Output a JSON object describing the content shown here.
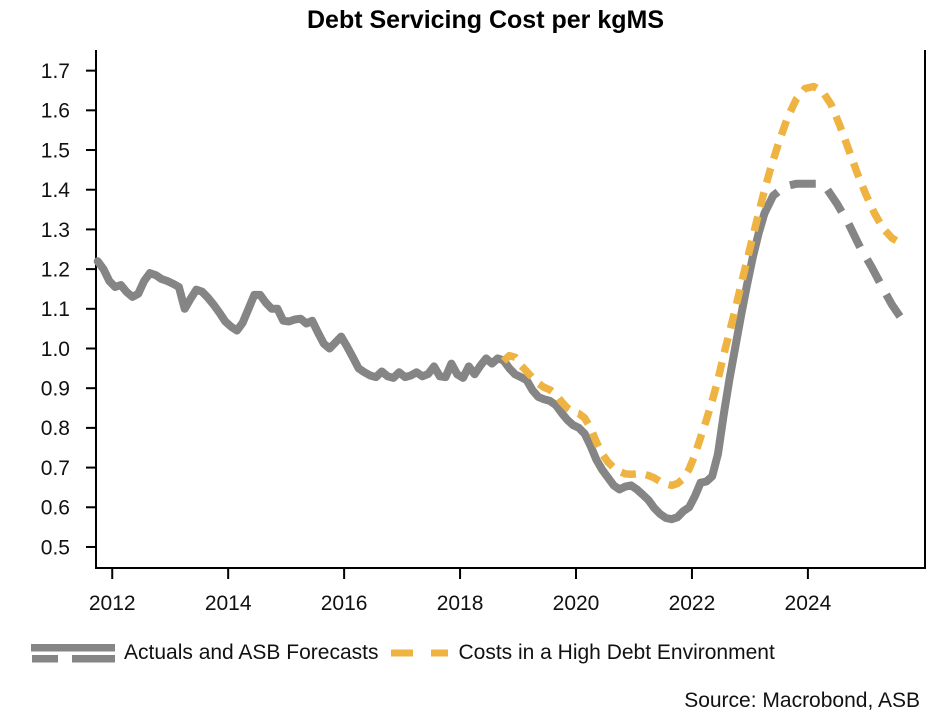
{
  "title": "Debt Servicing Cost per kgMS",
  "source": "Source: Macrobond, ASB",
  "colors": {
    "actuals": "#858585",
    "high_debt": "#EFB342",
    "axis": "#000000",
    "text": "#111111"
  },
  "legend": [
    {
      "label": "Actuals and ASB Forecasts",
      "color": "#858585",
      "style": "solid-plus-dashed"
    },
    {
      "label": "Costs in a High Debt Environment",
      "color": "#EFB342",
      "style": "dashed"
    }
  ],
  "chart_data": {
    "type": "line",
    "title": "Debt Servicing Cost per kgMS",
    "xlabel": "",
    "ylabel": "",
    "grid": false,
    "legend_position": "bottom",
    "xlim": [
      2011.72,
      2026.02
    ],
    "ylim": [
      0.447,
      1.752
    ],
    "x_ticks": [
      2012,
      2014,
      2016,
      2018,
      2020,
      2022,
      2024
    ],
    "x_tick_labels": [
      "2012",
      "2014",
      "2016",
      "2018",
      "2020",
      "2022",
      "2024"
    ],
    "y_ticks": [
      0.5,
      0.6,
      0.7,
      0.8,
      0.9,
      1.0,
      1.1,
      1.2,
      1.3,
      1.4,
      1.5,
      1.6,
      1.7
    ],
    "y_tick_labels": [
      "0.5",
      "0.6",
      "0.7",
      "0.8",
      "0.9",
      "1.0",
      "1.1",
      "1.2",
      "1.3",
      "1.4",
      "1.5",
      "1.6",
      "1.7"
    ],
    "series": [
      {
        "name": "actuals",
        "legend": "Actuals and ASB Forecasts",
        "color": "#858585",
        "line_style": "solid",
        "line_width": 8,
        "points": [
          [
            2011.75,
            1.22
          ],
          [
            2011.85,
            1.2
          ],
          [
            2011.95,
            1.17
          ],
          [
            2012.05,
            1.155
          ],
          [
            2012.15,
            1.16
          ],
          [
            2012.25,
            1.142
          ],
          [
            2012.35,
            1.13
          ],
          [
            2012.45,
            1.138
          ],
          [
            2012.55,
            1.17
          ],
          [
            2012.65,
            1.19
          ],
          [
            2012.75,
            1.185
          ],
          [
            2012.85,
            1.175
          ],
          [
            2012.95,
            1.17
          ],
          [
            2013.05,
            1.163
          ],
          [
            2013.15,
            1.155
          ],
          [
            2013.25,
            1.1
          ],
          [
            2013.35,
            1.125
          ],
          [
            2013.45,
            1.148
          ],
          [
            2013.55,
            1.143
          ],
          [
            2013.65,
            1.128
          ],
          [
            2013.75,
            1.11
          ],
          [
            2013.85,
            1.09
          ],
          [
            2013.95,
            1.068
          ],
          [
            2014.05,
            1.055
          ],
          [
            2014.15,
            1.045
          ],
          [
            2014.25,
            1.065
          ],
          [
            2014.35,
            1.1
          ],
          [
            2014.45,
            1.135
          ],
          [
            2014.55,
            1.135
          ],
          [
            2014.65,
            1.115
          ],
          [
            2014.75,
            1.1
          ],
          [
            2014.85,
            1.1
          ],
          [
            2014.95,
            1.07
          ],
          [
            2015.05,
            1.068
          ],
          [
            2015.15,
            1.073
          ],
          [
            2015.25,
            1.075
          ],
          [
            2015.35,
            1.063
          ],
          [
            2015.45,
            1.07
          ],
          [
            2015.55,
            1.04
          ],
          [
            2015.65,
            1.012
          ],
          [
            2015.75,
            1.0
          ],
          [
            2015.85,
            1.015
          ],
          [
            2015.95,
            1.03
          ],
          [
            2016.05,
            1.005
          ],
          [
            2016.15,
            0.978
          ],
          [
            2016.25,
            0.95
          ],
          [
            2016.35,
            0.94
          ],
          [
            2016.45,
            0.932
          ],
          [
            2016.55,
            0.928
          ],
          [
            2016.65,
            0.942
          ],
          [
            2016.75,
            0.93
          ],
          [
            2016.85,
            0.926
          ],
          [
            2016.95,
            0.94
          ],
          [
            2017.05,
            0.928
          ],
          [
            2017.15,
            0.932
          ],
          [
            2017.25,
            0.94
          ],
          [
            2017.35,
            0.93
          ],
          [
            2017.45,
            0.936
          ],
          [
            2017.55,
            0.955
          ],
          [
            2017.65,
            0.93
          ],
          [
            2017.75,
            0.928
          ],
          [
            2017.85,
            0.962
          ],
          [
            2017.95,
            0.935
          ],
          [
            2018.05,
            0.926
          ],
          [
            2018.15,
            0.955
          ],
          [
            2018.25,
            0.935
          ],
          [
            2018.35,
            0.957
          ],
          [
            2018.45,
            0.975
          ],
          [
            2018.55,
            0.962
          ],
          [
            2018.65,
            0.975
          ],
          [
            2018.75,
            0.97
          ],
          [
            2018.85,
            0.95
          ],
          [
            2018.95,
            0.935
          ],
          [
            2019.05,
            0.928
          ],
          [
            2019.15,
            0.92
          ],
          [
            2019.25,
            0.895
          ],
          [
            2019.35,
            0.878
          ],
          [
            2019.45,
            0.872
          ],
          [
            2019.55,
            0.868
          ],
          [
            2019.65,
            0.858
          ],
          [
            2019.75,
            0.838
          ],
          [
            2019.85,
            0.82
          ],
          [
            2019.95,
            0.807
          ],
          [
            2020.05,
            0.8
          ],
          [
            2020.15,
            0.785
          ],
          [
            2020.25,
            0.755
          ],
          [
            2020.35,
            0.72
          ],
          [
            2020.45,
            0.695
          ],
          [
            2020.55,
            0.675
          ],
          [
            2020.65,
            0.655
          ],
          [
            2020.75,
            0.645
          ],
          [
            2020.85,
            0.652
          ],
          [
            2020.95,
            0.655
          ],
          [
            2021.05,
            0.645
          ],
          [
            2021.15,
            0.632
          ],
          [
            2021.25,
            0.618
          ],
          [
            2021.35,
            0.598
          ],
          [
            2021.45,
            0.583
          ],
          [
            2021.55,
            0.573
          ],
          [
            2021.65,
            0.57
          ],
          [
            2021.75,
            0.575
          ],
          [
            2021.85,
            0.59
          ],
          [
            2021.95,
            0.6
          ],
          [
            2022.05,
            0.628
          ],
          [
            2022.15,
            0.662
          ],
          [
            2022.25,
            0.665
          ],
          [
            2022.35,
            0.678
          ],
          [
            2022.45,
            0.735
          ],
          [
            2022.55,
            0.835
          ],
          [
            2022.65,
            0.925
          ],
          [
            2022.75,
            1.005
          ],
          [
            2022.85,
            1.085
          ],
          [
            2022.95,
            1.16
          ],
          [
            2023.05,
            1.23
          ],
          [
            2023.15,
            1.29
          ],
          [
            2023.25,
            1.34
          ]
        ]
      },
      {
        "name": "asb-forecast",
        "legend": "Actuals and ASB Forecasts",
        "color": "#858585",
        "line_style": "dashed",
        "dash": "26 14",
        "line_width": 8,
        "points": [
          [
            2023.25,
            1.34
          ],
          [
            2023.4,
            1.385
          ],
          [
            2023.6,
            1.408
          ],
          [
            2023.8,
            1.415
          ],
          [
            2024.0,
            1.415
          ],
          [
            2024.15,
            1.415
          ],
          [
            2024.3,
            1.408
          ],
          [
            2024.5,
            1.365
          ],
          [
            2024.7,
            1.315
          ],
          [
            2024.9,
            1.255
          ],
          [
            2025.1,
            1.205
          ],
          [
            2025.3,
            1.15
          ],
          [
            2025.45,
            1.11
          ],
          [
            2025.6,
            1.078
          ]
        ]
      },
      {
        "name": "high-debt-costs",
        "legend": "Costs in a High Debt Environment",
        "color": "#EFB342",
        "line_style": "dashed",
        "dash": "15 10",
        "line_width": 7.5,
        "points": [
          [
            2018.75,
            0.968
          ],
          [
            2018.85,
            0.982
          ],
          [
            2018.95,
            0.978
          ],
          [
            2019.05,
            0.958
          ],
          [
            2019.15,
            0.942
          ],
          [
            2019.25,
            0.926
          ],
          [
            2019.35,
            0.912
          ],
          [
            2019.45,
            0.902
          ],
          [
            2019.55,
            0.896
          ],
          [
            2019.65,
            0.885
          ],
          [
            2019.75,
            0.866
          ],
          [
            2019.85,
            0.85
          ],
          [
            2019.95,
            0.84
          ],
          [
            2020.05,
            0.836
          ],
          [
            2020.15,
            0.825
          ],
          [
            2020.25,
            0.8
          ],
          [
            2020.35,
            0.765
          ],
          [
            2020.45,
            0.735
          ],
          [
            2020.55,
            0.714
          ],
          [
            2020.65,
            0.7
          ],
          [
            2020.75,
            0.69
          ],
          [
            2020.85,
            0.684
          ],
          [
            2020.95,
            0.683
          ],
          [
            2021.05,
            0.684
          ],
          [
            2021.15,
            0.684
          ],
          [
            2021.25,
            0.68
          ],
          [
            2021.35,
            0.674
          ],
          [
            2021.45,
            0.665
          ],
          [
            2021.55,
            0.659
          ],
          [
            2021.65,
            0.655
          ],
          [
            2021.75,
            0.66
          ],
          [
            2021.85,
            0.672
          ],
          [
            2021.95,
            0.696
          ],
          [
            2022.05,
            0.732
          ],
          [
            2022.15,
            0.776
          ],
          [
            2022.25,
            0.82
          ],
          [
            2022.35,
            0.868
          ],
          [
            2022.45,
            0.922
          ],
          [
            2022.55,
            0.985
          ],
          [
            2022.65,
            1.042
          ],
          [
            2022.75,
            1.1
          ],
          [
            2022.85,
            1.162
          ],
          [
            2022.95,
            1.222
          ],
          [
            2023.05,
            1.282
          ],
          [
            2023.15,
            1.34
          ],
          [
            2023.25,
            1.398
          ],
          [
            2023.35,
            1.45
          ],
          [
            2023.5,
            1.52
          ],
          [
            2023.65,
            1.582
          ],
          [
            2023.8,
            1.628
          ],
          [
            2023.95,
            1.655
          ],
          [
            2024.1,
            1.66
          ],
          [
            2024.25,
            1.648
          ],
          [
            2024.4,
            1.615
          ],
          [
            2024.55,
            1.562
          ],
          [
            2024.7,
            1.502
          ],
          [
            2024.85,
            1.442
          ],
          [
            2025.0,
            1.388
          ],
          [
            2025.15,
            1.34
          ],
          [
            2025.3,
            1.302
          ],
          [
            2025.45,
            1.278
          ],
          [
            2025.6,
            1.265
          ]
        ]
      }
    ]
  }
}
